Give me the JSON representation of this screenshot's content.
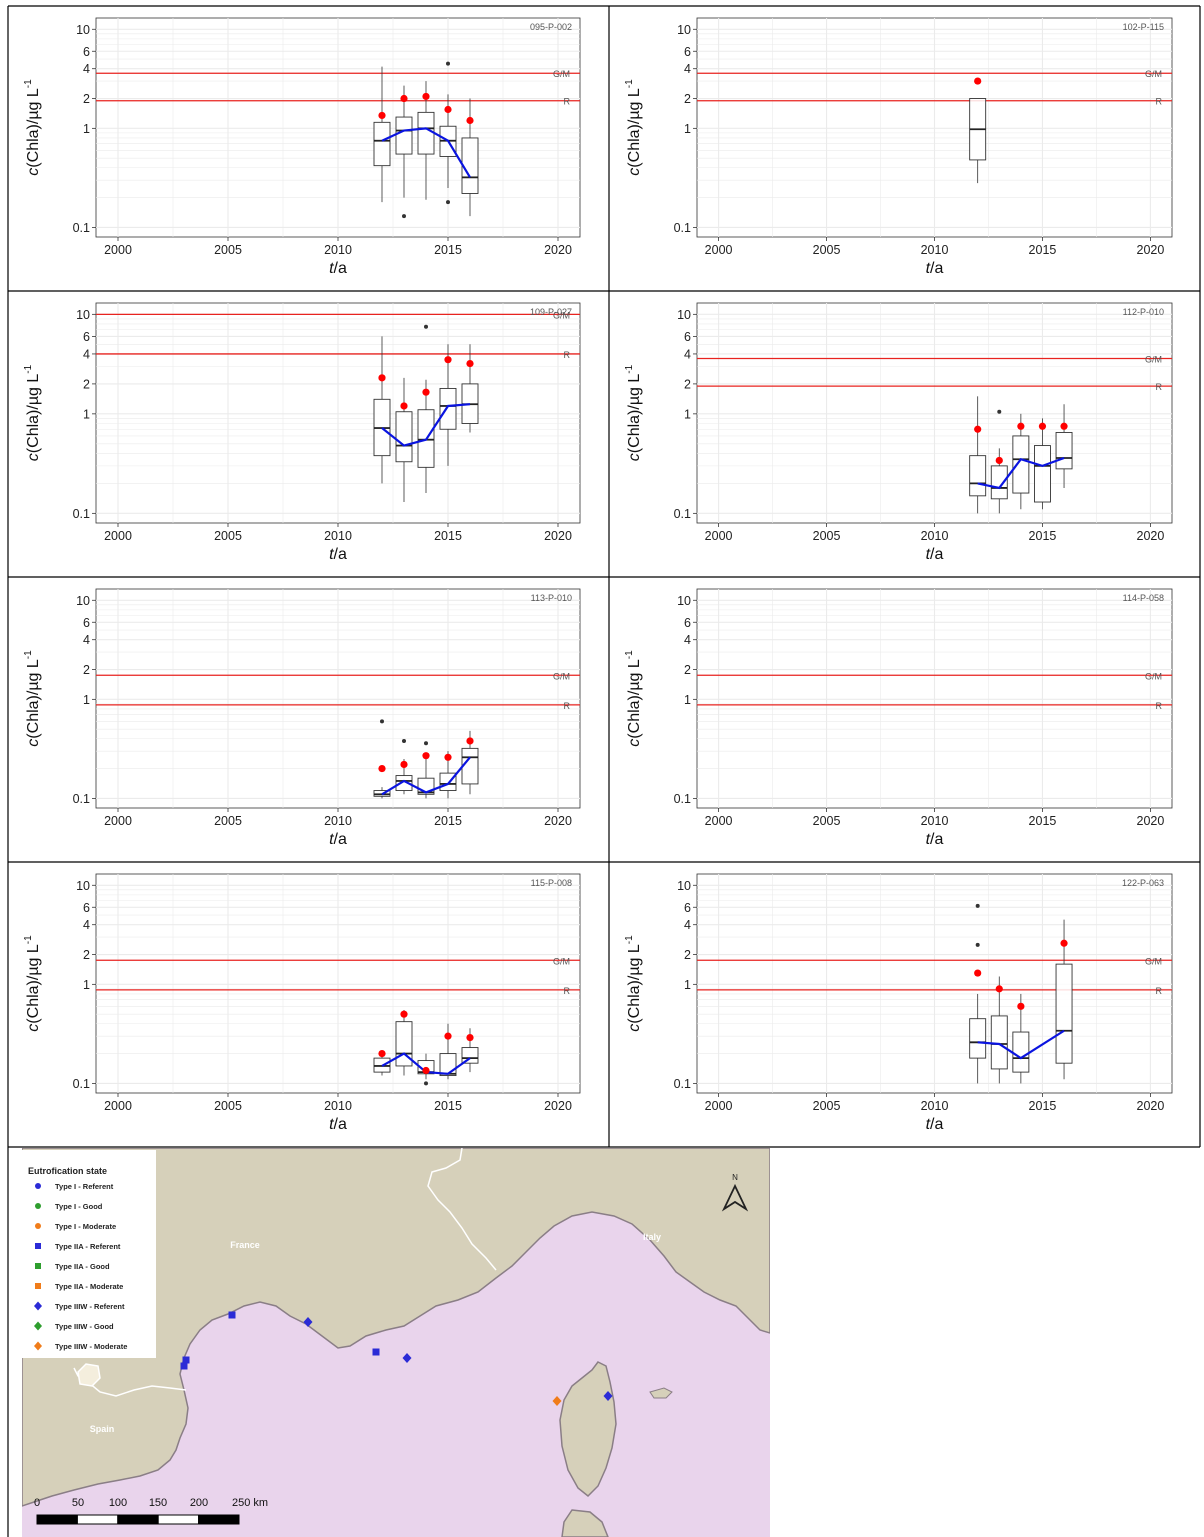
{
  "axis": {
    "ylabel_c": "c",
    "ylabel_rest": "(Chla)/µg L",
    "ylabel_sup": "-1",
    "xlabel_t": "t",
    "xlabel_rest": "/a"
  },
  "colors": {
    "threshold": "#e8231f",
    "trend": "#0a14e0",
    "mean_point": "#ff0000",
    "grid": "#ebebeb",
    "box": "#333333"
  },
  "chart_data": [
    {
      "type": "boxplot",
      "station": "095-P-002",
      "x_ticks": [
        2000,
        2005,
        2010,
        2015,
        2020
      ],
      "y_ticks": [
        0.1,
        1,
        2,
        4,
        6,
        10
      ],
      "xlim": [
        1999,
        2021
      ],
      "ylim": [
        0.08,
        13
      ],
      "y_scale": "log",
      "thresholds": [
        {
          "label": "G/M",
          "value": 3.6
        },
        {
          "label": "R",
          "value": 1.9
        }
      ],
      "boxes": [
        {
          "x": 2012,
          "q1": 0.42,
          "median": 0.75,
          "q3": 1.15,
          "lower": 0.18,
          "upper": 4.2,
          "mean": 1.35,
          "outliers": []
        },
        {
          "x": 2013,
          "q1": 0.55,
          "median": 0.95,
          "q3": 1.3,
          "lower": 0.2,
          "upper": 2.7,
          "mean": 2.0,
          "outliers": [
            0.13
          ]
        },
        {
          "x": 2014,
          "q1": 0.55,
          "median": 1.0,
          "q3": 1.45,
          "lower": 0.19,
          "upper": 3.0,
          "mean": 2.1,
          "outliers": []
        },
        {
          "x": 2015,
          "q1": 0.52,
          "median": 0.75,
          "q3": 1.05,
          "lower": 0.25,
          "upper": 2.2,
          "mean": 1.55,
          "outliers": [
            4.5,
            0.18
          ]
        },
        {
          "x": 2016,
          "q1": 0.22,
          "median": 0.32,
          "q3": 0.8,
          "lower": 0.13,
          "upper": 2.0,
          "mean": 1.2,
          "outliers": []
        }
      ],
      "trend": [
        [
          2012,
          0.75
        ],
        [
          2013,
          0.95
        ],
        [
          2014,
          1.0
        ],
        [
          2015,
          0.75
        ],
        [
          2016,
          0.32
        ]
      ]
    },
    {
      "type": "boxplot",
      "station": "102-P-115",
      "x_ticks": [
        2000,
        2005,
        2010,
        2015,
        2020
      ],
      "y_ticks": [
        0.1,
        1,
        2,
        4,
        6,
        10
      ],
      "xlim": [
        1999,
        2021
      ],
      "ylim": [
        0.08,
        13
      ],
      "y_scale": "log",
      "thresholds": [
        {
          "label": "G/M",
          "value": 3.6
        },
        {
          "label": "R",
          "value": 1.9
        }
      ],
      "boxes": [
        {
          "x": 2012,
          "q1": 0.48,
          "median": 0.98,
          "q3": 2.0,
          "lower": 0.28,
          "upper": 2.0,
          "mean": 3.0,
          "outliers": []
        }
      ],
      "trend": []
    },
    {
      "type": "boxplot",
      "station": "109-P-027",
      "x_ticks": [
        2000,
        2005,
        2010,
        2015,
        2020
      ],
      "y_ticks": [
        0.1,
        1,
        2,
        4,
        6,
        10
      ],
      "xlim": [
        1999,
        2021
      ],
      "ylim": [
        0.08,
        13
      ],
      "y_scale": "log",
      "thresholds": [
        {
          "label": "G/M",
          "value": 10.0
        },
        {
          "label": "R",
          "value": 4.0
        }
      ],
      "boxes": [
        {
          "x": 2012,
          "q1": 0.38,
          "median": 0.72,
          "q3": 1.4,
          "lower": 0.2,
          "upper": 6.0,
          "mean": 2.3,
          "outliers": []
        },
        {
          "x": 2013,
          "q1": 0.33,
          "median": 0.48,
          "q3": 1.05,
          "lower": 0.13,
          "upper": 2.3,
          "mean": 1.2,
          "outliers": []
        },
        {
          "x": 2014,
          "q1": 0.29,
          "median": 0.55,
          "q3": 1.1,
          "lower": 0.16,
          "upper": 2.2,
          "mean": 1.65,
          "outliers": [
            7.5
          ]
        },
        {
          "x": 2015,
          "q1": 0.7,
          "median": 1.2,
          "q3": 1.8,
          "lower": 0.3,
          "upper": 5.0,
          "mean": 3.5,
          "outliers": []
        },
        {
          "x": 2016,
          "q1": 0.8,
          "median": 1.25,
          "q3": 2.0,
          "lower": 0.65,
          "upper": 5.0,
          "mean": 3.2,
          "outliers": []
        }
      ],
      "trend": [
        [
          2012,
          0.72
        ],
        [
          2013,
          0.48
        ],
        [
          2014,
          0.55
        ],
        [
          2015,
          1.2
        ],
        [
          2016,
          1.25
        ]
      ]
    },
    {
      "type": "boxplot",
      "station": "112-P-010",
      "x_ticks": [
        2000,
        2005,
        2010,
        2015,
        2020
      ],
      "y_ticks": [
        0.1,
        1,
        2,
        4,
        6,
        10
      ],
      "xlim": [
        1999,
        2021
      ],
      "ylim": [
        0.08,
        13
      ],
      "y_scale": "log",
      "thresholds": [
        {
          "label": "G/M",
          "value": 3.6
        },
        {
          "label": "R",
          "value": 1.9
        }
      ],
      "boxes": [
        {
          "x": 2012,
          "q1": 0.15,
          "median": 0.2,
          "q3": 0.38,
          "lower": 0.1,
          "upper": 1.5,
          "mean": 0.7,
          "outliers": []
        },
        {
          "x": 2013,
          "q1": 0.14,
          "median": 0.18,
          "q3": 0.3,
          "lower": 0.1,
          "upper": 0.45,
          "mean": 0.34,
          "outliers": [
            1.05
          ]
        },
        {
          "x": 2014,
          "q1": 0.16,
          "median": 0.35,
          "q3": 0.6,
          "lower": 0.11,
          "upper": 1.0,
          "mean": 0.75,
          "outliers": []
        },
        {
          "x": 2015,
          "q1": 0.13,
          "median": 0.3,
          "q3": 0.48,
          "lower": 0.11,
          "upper": 0.9,
          "mean": 0.75,
          "outliers": []
        },
        {
          "x": 2016,
          "q1": 0.28,
          "median": 0.36,
          "q3": 0.65,
          "lower": 0.18,
          "upper": 1.25,
          "mean": 0.75,
          "outliers": []
        }
      ],
      "trend": [
        [
          2012,
          0.2
        ],
        [
          2013,
          0.18
        ],
        [
          2014,
          0.35
        ],
        [
          2015,
          0.3
        ],
        [
          2016,
          0.36
        ]
      ]
    },
    {
      "type": "boxplot",
      "station": "113-P-010",
      "x_ticks": [
        2000,
        2005,
        2010,
        2015,
        2020
      ],
      "y_ticks": [
        0.1,
        1,
        2,
        4,
        6,
        10
      ],
      "xlim": [
        1999,
        2021
      ],
      "ylim": [
        0.08,
        13
      ],
      "y_scale": "log",
      "thresholds": [
        {
          "label": "G/M",
          "value": 1.75
        },
        {
          "label": "R",
          "value": 0.88
        }
      ],
      "boxes": [
        {
          "x": 2012,
          "q1": 0.105,
          "median": 0.11,
          "q3": 0.12,
          "lower": 0.1,
          "upper": 0.13,
          "mean": 0.2,
          "outliers": [
            0.6
          ]
        },
        {
          "x": 2013,
          "q1": 0.12,
          "median": 0.15,
          "q3": 0.17,
          "lower": 0.11,
          "upper": 0.25,
          "mean": 0.22,
          "outliers": [
            0.38
          ]
        },
        {
          "x": 2014,
          "q1": 0.11,
          "median": 0.115,
          "q3": 0.16,
          "lower": 0.1,
          "upper": 0.25,
          "mean": 0.27,
          "outliers": [
            0.36
          ]
        },
        {
          "x": 2015,
          "q1": 0.12,
          "median": 0.14,
          "q3": 0.18,
          "lower": 0.1,
          "upper": 0.3,
          "mean": 0.26,
          "outliers": []
        },
        {
          "x": 2016,
          "q1": 0.14,
          "median": 0.26,
          "q3": 0.32,
          "lower": 0.11,
          "upper": 0.48,
          "mean": 0.38,
          "outliers": []
        }
      ],
      "trend": [
        [
          2012,
          0.11
        ],
        [
          2013,
          0.15
        ],
        [
          2014,
          0.115
        ],
        [
          2015,
          0.14
        ],
        [
          2016,
          0.26
        ]
      ]
    },
    {
      "type": "boxplot",
      "station": "114-P-058",
      "x_ticks": [
        2000,
        2005,
        2010,
        2015,
        2020
      ],
      "y_ticks": [
        0.1,
        1,
        2,
        4,
        6,
        10
      ],
      "xlim": [
        1999,
        2021
      ],
      "ylim": [
        0.08,
        13
      ],
      "y_scale": "log",
      "thresholds": [
        {
          "label": "G/M",
          "value": 1.75
        },
        {
          "label": "R",
          "value": 0.88
        }
      ],
      "boxes": [],
      "trend": []
    },
    {
      "type": "boxplot",
      "station": "115-P-008",
      "x_ticks": [
        2000,
        2005,
        2010,
        2015,
        2020
      ],
      "y_ticks": [
        0.1,
        1,
        2,
        4,
        6,
        10
      ],
      "xlim": [
        1999,
        2021
      ],
      "ylim": [
        0.08,
        13
      ],
      "y_scale": "log",
      "thresholds": [
        {
          "label": "G/M",
          "value": 1.75
        },
        {
          "label": "R",
          "value": 0.88
        }
      ],
      "boxes": [
        {
          "x": 2012,
          "q1": 0.13,
          "median": 0.15,
          "q3": 0.18,
          "lower": 0.12,
          "upper": 0.2,
          "mean": 0.2,
          "outliers": []
        },
        {
          "x": 2013,
          "q1": 0.15,
          "median": 0.2,
          "q3": 0.42,
          "lower": 0.12,
          "upper": 0.55,
          "mean": 0.5,
          "outliers": []
        },
        {
          "x": 2014,
          "q1": 0.125,
          "median": 0.13,
          "q3": 0.17,
          "lower": 0.11,
          "upper": 0.2,
          "mean": 0.135,
          "outliers": [
            0.1
          ]
        },
        {
          "x": 2015,
          "q1": 0.12,
          "median": 0.125,
          "q3": 0.2,
          "lower": 0.11,
          "upper": 0.4,
          "mean": 0.3,
          "outliers": []
        },
        {
          "x": 2016,
          "q1": 0.16,
          "median": 0.18,
          "q3": 0.23,
          "lower": 0.13,
          "upper": 0.36,
          "mean": 0.29,
          "outliers": []
        }
      ],
      "trend": [
        [
          2012,
          0.15
        ],
        [
          2013,
          0.2
        ],
        [
          2014,
          0.13
        ],
        [
          2015,
          0.125
        ],
        [
          2016,
          0.18
        ]
      ]
    },
    {
      "type": "boxplot",
      "station": "122-P-063",
      "x_ticks": [
        2000,
        2005,
        2010,
        2015,
        2020
      ],
      "y_ticks": [
        0.1,
        1,
        2,
        4,
        6,
        10
      ],
      "xlim": [
        1999,
        2021
      ],
      "ylim": [
        0.08,
        13
      ],
      "y_scale": "log",
      "thresholds": [
        {
          "label": "G/M",
          "value": 1.75
        },
        {
          "label": "R",
          "value": 0.88
        }
      ],
      "boxes": [
        {
          "x": 2012,
          "q1": 0.18,
          "median": 0.26,
          "q3": 0.45,
          "lower": 0.1,
          "upper": 0.8,
          "mean": 1.3,
          "outliers": [
            6.2,
            2.5
          ]
        },
        {
          "x": 2013,
          "q1": 0.14,
          "median": 0.25,
          "q3": 0.48,
          "lower": 0.1,
          "upper": 1.2,
          "mean": 0.9,
          "outliers": []
        },
        {
          "x": 2014,
          "q1": 0.13,
          "median": 0.18,
          "q3": 0.33,
          "lower": 0.1,
          "upper": 0.8,
          "mean": 0.6,
          "outliers": []
        },
        {
          "x": 2015,
          "q1": null,
          "median": null,
          "q3": null,
          "lower": null,
          "upper": null,
          "mean": null,
          "outliers": []
        },
        {
          "x": 2016,
          "q1": 0.16,
          "median": 0.34,
          "q3": 1.6,
          "lower": 0.11,
          "upper": 4.5,
          "mean": 2.6,
          "outliers": []
        }
      ],
      "trend": [
        [
          2012,
          0.26
        ],
        [
          2013,
          0.25
        ],
        [
          2014,
          0.18
        ],
        [
          2016,
          0.34
        ]
      ]
    }
  ],
  "map": {
    "legend_title": "Eutrofication state",
    "legend_items": [
      {
        "label": "Type I - Referent",
        "shape": "circle",
        "color": "#2b2bd6"
      },
      {
        "label": "Type I - Good",
        "shape": "circle",
        "color": "#2e9e2e"
      },
      {
        "label": "Type I - Moderate",
        "shape": "circle",
        "color": "#f07c1a"
      },
      {
        "label": "Type IIA - Referent",
        "shape": "square",
        "color": "#2b2bd6"
      },
      {
        "label": "Type IIA - Good",
        "shape": "square",
        "color": "#2e9e2e"
      },
      {
        "label": "Type IIA - Moderate",
        "shape": "square",
        "color": "#f07c1a"
      },
      {
        "label": "Type IIIW - Referent",
        "shape": "diamond",
        "color": "#2b2bd6"
      },
      {
        "label": "Type IIIW - Good",
        "shape": "diamond",
        "color": "#2e9e2e"
      },
      {
        "label": "Type IIIW - Moderate",
        "shape": "diamond",
        "color": "#f07c1a"
      }
    ],
    "countries": [
      "France",
      "Italy",
      "Spain"
    ],
    "north_label": "N",
    "scale_labels": [
      "0",
      "50",
      "100",
      "150",
      "200",
      "250 km"
    ],
    "land_color": "#d6d0ba",
    "sea_color": "#e9d4ec",
    "coast_color": "#8a7e86"
  }
}
